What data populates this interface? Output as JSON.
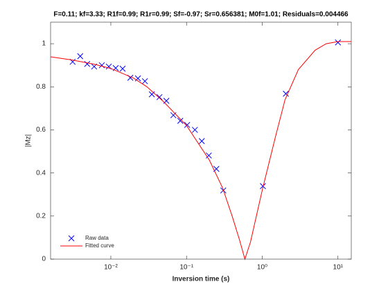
{
  "chart_data": {
    "type": "line",
    "title": "F=0.11; kf=3.33; R1f=0.99; R1r=0.99; Sf=-0.97; Sr=0.656381; M0f=1.01; Residuals=0.004466",
    "xlabel": "Inversion time (s)",
    "ylabel": "|Mz|",
    "xscale": "log",
    "xlim": [
      0.0016,
      15
    ],
    "ylim": [
      0,
      1.1
    ],
    "xticks": [
      {
        "value": 0.01,
        "label": "10⁻²"
      },
      {
        "value": 0.1,
        "label": "10⁻¹"
      },
      {
        "value": 1,
        "label": "10⁰"
      },
      {
        "value": 10,
        "label": "10¹"
      }
    ],
    "yticks": [
      0,
      0.2,
      0.4,
      0.6,
      0.8,
      1
    ],
    "grid": false,
    "legend": "lower left",
    "series": [
      {
        "name": "Raw data",
        "color": "#0000ff",
        "marker": "x",
        "x": [
          0.00313,
          0.00394,
          0.00487,
          0.00602,
          0.0076,
          0.0094,
          0.0116,
          0.0143,
          0.0181,
          0.0228,
          0.0282,
          0.0348,
          0.0439,
          0.0542,
          0.067,
          0.0827,
          0.102,
          0.129,
          0.159,
          0.197,
          0.248,
          0.306,
          1.02,
          2.05,
          10
        ],
        "values": [
          0.916,
          0.942,
          0.906,
          0.894,
          0.9,
          0.894,
          0.887,
          0.884,
          0.842,
          0.839,
          0.826,
          0.765,
          0.752,
          0.735,
          0.668,
          0.642,
          0.623,
          0.6,
          0.548,
          0.481,
          0.419,
          0.319,
          0.339,
          0.768,
          1.006
        ]
      },
      {
        "name": "Fitted curve",
        "color": "#ff0000",
        "x": [
          0.0016,
          0.003,
          0.006,
          0.01,
          0.02,
          0.03,
          0.05,
          0.1,
          0.2,
          0.3,
          0.4,
          0.5,
          0.59,
          0.7,
          1,
          1.5,
          2,
          3,
          5,
          7,
          10,
          15
        ],
        "values": [
          0.939,
          0.925,
          0.905,
          0.885,
          0.84,
          0.8,
          0.73,
          0.62,
          0.46,
          0.33,
          0.2,
          0.09,
          0.0,
          0.08,
          0.32,
          0.57,
          0.74,
          0.88,
          0.97,
          1.0,
          1.01,
          1.01
        ]
      }
    ]
  }
}
